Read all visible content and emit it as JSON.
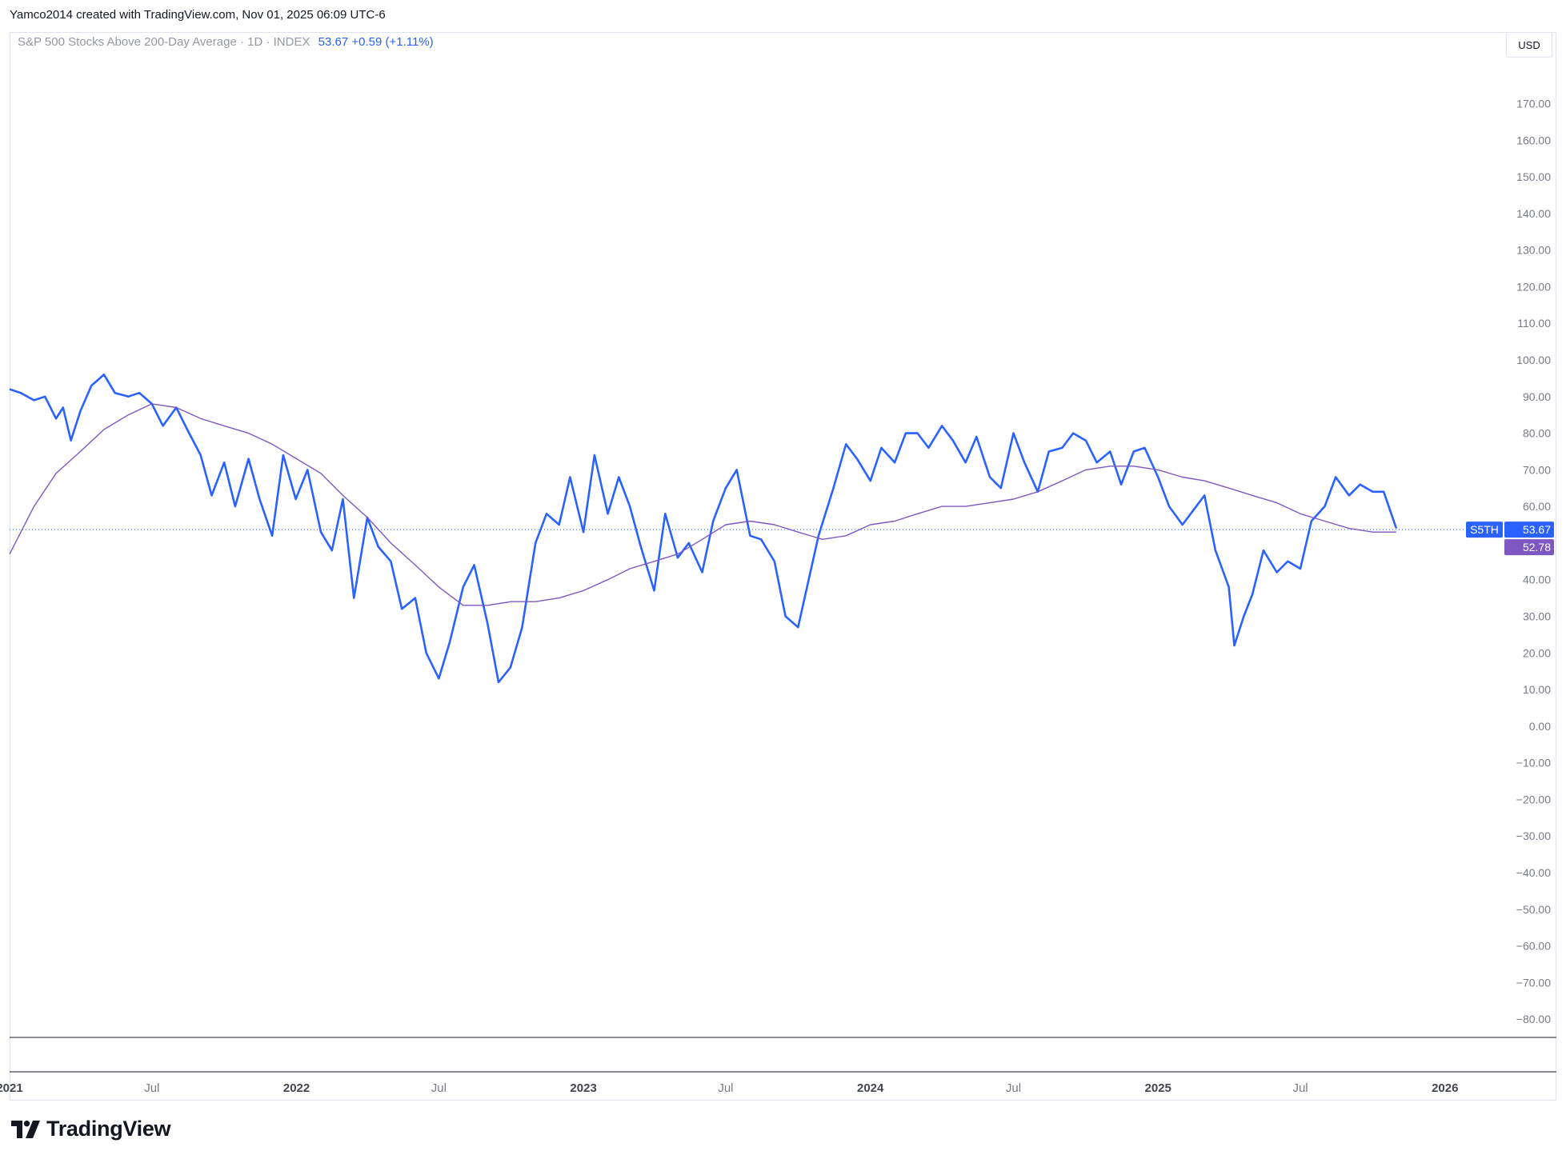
{
  "header": {
    "credit": "Yamco2014 created with TradingView.com, Nov 01, 2025 06:09 UTC-6",
    "legend_name": "S&P 500 Stocks Above 200-Day Average · 1D · INDEX",
    "legend_values": "53.67  +0.59 (+1.11%)",
    "currency_button": "USD"
  },
  "footer": {
    "brand": "TradingView"
  },
  "colors": {
    "price": "#2962ff",
    "ma": "#7e57c2",
    "axis_text": "#787b86"
  },
  "chart_data": {
    "type": "line",
    "title": "S&P 500 Stocks Above 200-Day Average · 1D · INDEX",
    "y_ticks": [
      170,
      160,
      150,
      140,
      130,
      120,
      110,
      100,
      90,
      80,
      70,
      60,
      40,
      30,
      20,
      10,
      0,
      -10,
      -20,
      -30,
      -40,
      -50,
      -60,
      -70,
      -80
    ],
    "y_tick_labels": [
      "170.00",
      "160.00",
      "150.00",
      "140.00",
      "130.00",
      "120.00",
      "110.00",
      "100.00",
      "90.00",
      "80.00",
      "70.00",
      "60.00",
      "40.00",
      "30.00",
      "20.00",
      "10.00",
      "0.00",
      "−10.00",
      "−20.00",
      "−30.00",
      "−40.00",
      "−50.00",
      "−60.00",
      "−70.00",
      "−80.00"
    ],
    "ylim": [
      -85,
      183
    ],
    "xlim": [
      "2021-01-01",
      "2026-02-15"
    ],
    "x_ticks": [
      {
        "date": "2021-01-01",
        "label": "2021",
        "bold": true
      },
      {
        "date": "2021-07-01",
        "label": "Jul",
        "bold": false
      },
      {
        "date": "2022-01-01",
        "label": "2022",
        "bold": true
      },
      {
        "date": "2022-07-01",
        "label": "Jul",
        "bold": false
      },
      {
        "date": "2023-01-01",
        "label": "2023",
        "bold": true
      },
      {
        "date": "2023-07-01",
        "label": "Jul",
        "bold": false
      },
      {
        "date": "2024-01-01",
        "label": "2024",
        "bold": true
      },
      {
        "date": "2024-07-01",
        "label": "Jul",
        "bold": false
      },
      {
        "date": "2025-01-01",
        "label": "2025",
        "bold": true
      },
      {
        "date": "2025-07-01",
        "label": "Jul",
        "bold": false
      },
      {
        "date": "2026-01-01",
        "label": "2026",
        "bold": true
      }
    ],
    "last_value_line": 53.67,
    "labels": {
      "symbol": "S5TH",
      "last": "53.67",
      "ma_last": "52.78"
    },
    "grid": false,
    "series": [
      {
        "color": "#2962ff",
        "x": [
          "2021-01-01",
          "2021-01-15",
          "2021-02-01",
          "2021-02-15",
          "2021-03-01",
          "2021-03-10",
          "2021-03-20",
          "2021-04-01",
          "2021-04-15",
          "2021-05-01",
          "2021-05-15",
          "2021-06-01",
          "2021-06-15",
          "2021-07-01",
          "2021-07-15",
          "2021-08-01",
          "2021-08-15",
          "2021-09-01",
          "2021-09-15",
          "2021-10-01",
          "2021-10-15",
          "2021-11-01",
          "2021-11-15",
          "2021-12-01",
          "2021-12-15",
          "2021-12-31",
          "2022-01-15",
          "2022-02-01",
          "2022-02-15",
          "2022-03-01",
          "2022-03-15",
          "2022-04-01",
          "2022-04-15",
          "2022-05-01",
          "2022-05-15",
          "2022-06-01",
          "2022-06-15",
          "2022-07-01",
          "2022-07-15",
          "2022-08-01",
          "2022-08-15",
          "2022-09-01",
          "2022-09-15",
          "2022-09-30",
          "2022-10-15",
          "2022-11-01",
          "2022-11-15",
          "2022-12-01",
          "2022-12-15",
          "2023-01-01",
          "2023-01-15",
          "2023-02-01",
          "2023-02-15",
          "2023-03-01",
          "2023-03-15",
          "2023-04-01",
          "2023-04-15",
          "2023-05-01",
          "2023-05-15",
          "2023-06-01",
          "2023-06-15",
          "2023-07-01",
          "2023-07-15",
          "2023-08-01",
          "2023-08-15",
          "2023-09-01",
          "2023-09-15",
          "2023-10-01",
          "2023-10-27",
          "2023-11-15",
          "2023-12-01",
          "2023-12-15",
          "2024-01-01",
          "2024-01-15",
          "2024-02-01",
          "2024-02-15",
          "2024-03-01",
          "2024-03-15",
          "2024-04-01",
          "2024-04-15",
          "2024-05-01",
          "2024-05-15",
          "2024-06-01",
          "2024-06-15",
          "2024-07-01",
          "2024-07-15",
          "2024-08-01",
          "2024-08-15",
          "2024-09-01",
          "2024-09-15",
          "2024-10-01",
          "2024-10-15",
          "2024-11-01",
          "2024-11-15",
          "2024-12-01",
          "2024-12-15",
          "2025-01-01",
          "2025-01-15",
          "2025-02-01",
          "2025-02-15",
          "2025-03-01",
          "2025-03-15",
          "2025-04-01",
          "2025-04-08",
          "2025-04-20",
          "2025-05-01",
          "2025-05-15",
          "2025-06-01",
          "2025-06-15",
          "2025-07-01",
          "2025-07-15",
          "2025-08-01",
          "2025-08-15",
          "2025-09-01",
          "2025-09-15",
          "2025-10-01",
          "2025-10-15",
          "2025-10-31"
        ],
        "values": [
          92,
          91,
          89,
          90,
          84,
          87,
          78,
          86,
          93,
          96,
          91,
          90,
          91,
          88,
          82,
          87,
          81,
          74,
          63,
          72,
          60,
          73,
          62,
          52,
          74,
          62,
          70,
          53,
          48,
          62,
          35,
          57,
          49,
          45,
          32,
          35,
          20,
          13,
          23,
          38,
          44,
          28,
          12,
          16,
          27,
          50,
          58,
          55,
          68,
          53,
          74,
          58,
          68,
          60,
          49,
          37,
          58,
          46,
          50,
          42,
          56,
          65,
          70,
          52,
          51,
          45,
          30,
          27,
          52,
          65,
          77,
          73,
          67,
          76,
          72,
          80,
          80,
          76,
          82,
          78,
          72,
          79,
          68,
          65,
          80,
          72,
          64,
          75,
          76,
          80,
          78,
          72,
          75,
          66,
          75,
          76,
          68,
          60,
          55,
          59,
          63,
          48,
          38,
          22,
          30,
          36,
          48,
          42,
          45,
          43,
          56,
          60,
          68,
          63,
          66,
          64,
          64,
          54
        ]
      },
      {
        "color": "#7e57c2",
        "x": [
          "2021-01-01",
          "2021-02-01",
          "2021-03-01",
          "2021-04-01",
          "2021-05-01",
          "2021-06-01",
          "2021-07-01",
          "2021-08-01",
          "2021-09-01",
          "2021-10-01",
          "2021-11-01",
          "2021-12-01",
          "2022-01-01",
          "2022-02-01",
          "2022-03-01",
          "2022-04-01",
          "2022-05-01",
          "2022-06-01",
          "2022-07-01",
          "2022-08-01",
          "2022-09-01",
          "2022-10-01",
          "2022-11-01",
          "2022-12-01",
          "2023-01-01",
          "2023-02-01",
          "2023-03-01",
          "2023-04-01",
          "2023-05-01",
          "2023-06-01",
          "2023-07-01",
          "2023-08-01",
          "2023-09-01",
          "2023-10-01",
          "2023-11-01",
          "2023-12-01",
          "2024-01-01",
          "2024-02-01",
          "2024-03-01",
          "2024-04-01",
          "2024-05-01",
          "2024-06-01",
          "2024-07-01",
          "2024-08-01",
          "2024-09-01",
          "2024-10-01",
          "2024-11-01",
          "2024-12-01",
          "2025-01-01",
          "2025-02-01",
          "2025-03-01",
          "2025-04-01",
          "2025-05-01",
          "2025-06-01",
          "2025-07-01",
          "2025-08-01",
          "2025-09-01",
          "2025-10-01",
          "2025-10-31"
        ],
        "values": [
          47,
          60,
          69,
          75,
          81,
          85,
          88,
          87,
          84,
          82,
          80,
          77,
          73,
          69,
          63,
          57,
          50,
          44,
          38,
          33,
          33,
          34,
          34,
          35,
          37,
          40,
          43,
          45,
          47,
          51,
          55,
          56,
          55,
          53,
          51,
          52,
          55,
          56,
          58,
          60,
          60,
          61,
          62,
          64,
          67,
          70,
          71,
          71,
          70,
          68,
          67,
          65,
          63,
          61,
          58,
          56,
          54,
          53,
          53
        ]
      }
    ]
  }
}
